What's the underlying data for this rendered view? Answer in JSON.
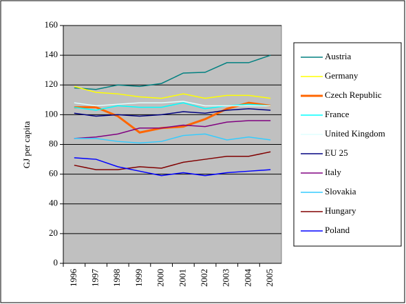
{
  "chart_data": {
    "type": "line",
    "y_label": "GJ per capita",
    "categories": [
      "1996",
      "1997",
      "1998",
      "1999",
      "2000",
      "2001",
      "2002",
      "2003",
      "2004",
      "2005"
    ],
    "ylim": [
      0,
      160
    ],
    "yticks": [
      0,
      20,
      40,
      60,
      80,
      100,
      120,
      140,
      160
    ],
    "grid": true,
    "legend": "right",
    "series": [
      {
        "name": "Austria",
        "color": "#008080",
        "values": [
          118,
          117,
          120,
          119,
          121,
          128,
          128.5,
          135,
          135,
          140
        ]
      },
      {
        "name": "Germany",
        "color": "#ffff00",
        "values": [
          119,
          115,
          114,
          112,
          111,
          114,
          111,
          113,
          113,
          111
        ]
      },
      {
        "name": "Czech Republic",
        "color": "#ff6600",
        "values": [
          105,
          105,
          99,
          88,
          91,
          92,
          97,
          104,
          108,
          106
        ]
      },
      {
        "name": "France",
        "color": "#00ffff",
        "values": [
          105,
          103,
          106,
          105,
          105,
          108,
          104,
          106,
          107,
          106
        ]
      },
      {
        "name": "United Kingdom",
        "color": "#e0ffff",
        "values": [
          108,
          106,
          107,
          108,
          108,
          109,
          106,
          106,
          106,
          106
        ]
      },
      {
        "name": "EU 25",
        "color": "#000080",
        "values": [
          101,
          99,
          100,
          99,
          100,
          102,
          101,
          103,
          104,
          103
        ]
      },
      {
        "name": "Italy",
        "color": "#800080",
        "values": [
          84,
          85,
          87,
          91,
          91,
          93,
          92,
          95,
          96,
          96
        ]
      },
      {
        "name": "Slovakia",
        "color": "#33ccff",
        "values": [
          84,
          84,
          82,
          81,
          82,
          86,
          87,
          83,
          85,
          83
        ]
      },
      {
        "name": "Hungary",
        "color": "#800000",
        "values": [
          66,
          63,
          63,
          65,
          64,
          68,
          70,
          72,
          72,
          75
        ]
      },
      {
        "name": "Poland",
        "color": "#0000ff",
        "values": [
          71,
          70,
          65,
          62,
          59,
          61,
          59,
          61,
          62,
          63
        ]
      }
    ]
  }
}
